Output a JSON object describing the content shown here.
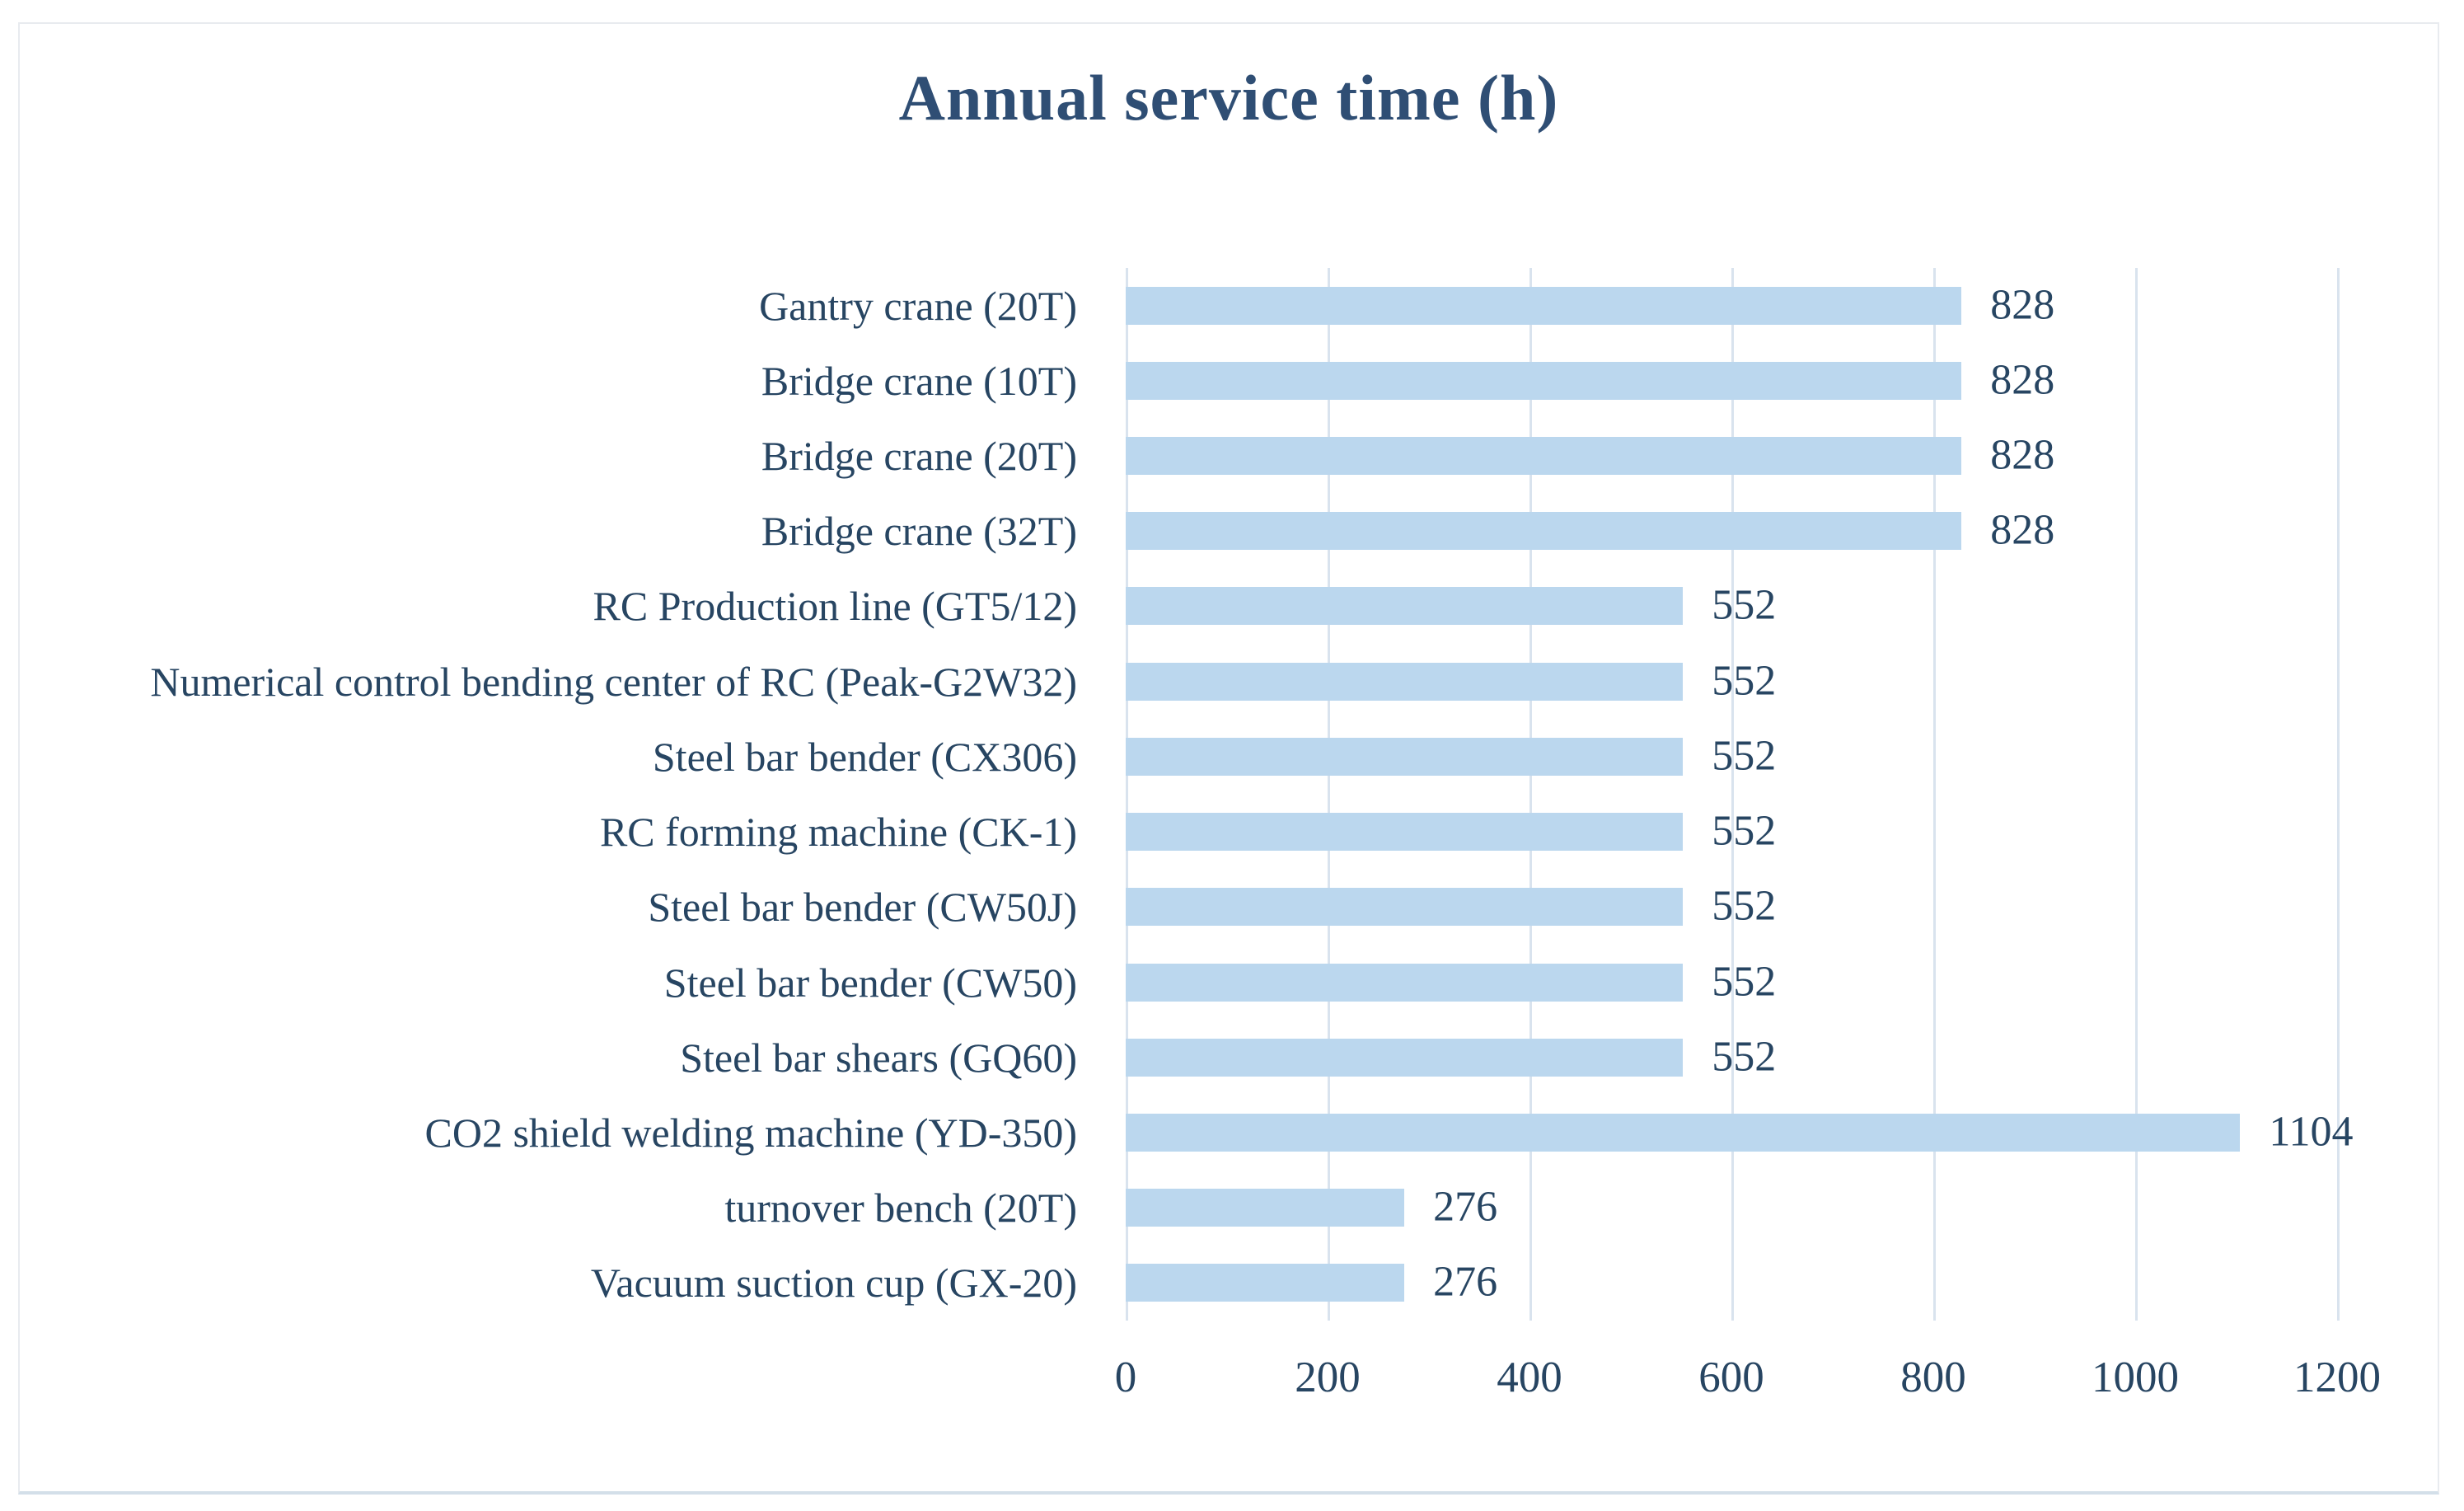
{
  "chart_data": {
    "type": "bar",
    "orientation": "horizontal",
    "title": "Annual service time (h)",
    "categories": [
      "Gantry crane (20T)",
      "Bridge crane (10T)",
      "Bridge crane (20T)",
      "Bridge crane (32T)",
      "RC Production line (GT5/12)",
      "Numerical control bending center of RC (Peak-G2W32)",
      "Steel bar bender (CX306)",
      "RC forming machine (CK-1)",
      "Steel bar bender (CW50J)",
      "Steel bar bender (CW50)",
      "Steel bar shears (GQ60)",
      "CO2 shield welding machine (YD-350)",
      "turnover bench (20T)",
      "Vacuum suction cup (GX-20)"
    ],
    "values": [
      828,
      828,
      828,
      828,
      552,
      552,
      552,
      552,
      552,
      552,
      552,
      1104,
      276,
      276
    ],
    "data_labels": [
      "828",
      "828",
      "828",
      "828",
      "552",
      "552",
      "552",
      "552",
      "552",
      "552",
      "552",
      "1104",
      "276",
      "276"
    ],
    "x_ticks": [
      "0",
      "200",
      "400",
      "600",
      "800",
      "1000",
      "1200"
    ],
    "xlim": [
      0,
      1200
    ],
    "xlabel": "",
    "ylabel": "",
    "grid": "vertical-major",
    "legend": "none",
    "colors": {
      "bar_fill": "#BBD7EE",
      "gridline": "#D9E3EE",
      "axis_line": "#D9E3EE",
      "title_text": "#2F4E74",
      "label_text": "#274562",
      "canvas_border": "#E8EBEF",
      "background": "#FFFFFF"
    }
  }
}
